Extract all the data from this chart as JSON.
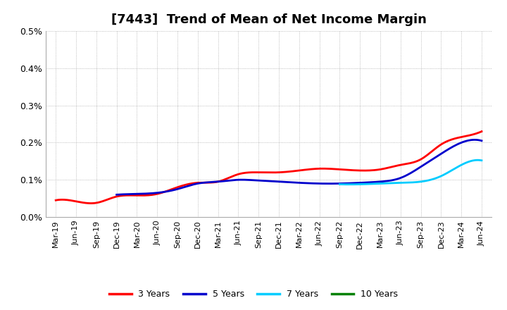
{
  "title": "[7443]  Trend of Mean of Net Income Margin",
  "background_color": "#ffffff",
  "grid_color": "#aaaaaa",
  "series": {
    "3 Years": {
      "color": "#ff0000",
      "x_indices": [
        0,
        1,
        2,
        3,
        4,
        5,
        6,
        7,
        8,
        9,
        10,
        11,
        12,
        13,
        14,
        15,
        16,
        17,
        18,
        19,
        20,
        21
      ],
      "y": [
        0.00045,
        0.00042,
        0.00038,
        0.00055,
        0.00058,
        0.00062,
        0.0008,
        0.00092,
        0.00095,
        0.00115,
        0.0012,
        0.0012,
        0.00125,
        0.0013,
        0.00128,
        0.00125,
        0.00128,
        0.0014,
        0.00155,
        0.00195,
        0.00215,
        0.0023
      ]
    },
    "5 Years": {
      "color": "#0000cc",
      "x_indices": [
        3,
        4,
        5,
        6,
        7,
        8,
        9,
        10,
        11,
        12,
        13,
        14,
        15,
        16,
        17,
        18,
        19,
        20,
        21
      ],
      "y": [
        0.0006,
        0.00062,
        0.00065,
        0.00075,
        0.0009,
        0.00095,
        0.001,
        0.00098,
        0.00095,
        0.00092,
        0.0009,
        0.0009,
        0.00092,
        0.00095,
        0.00105,
        0.00135,
        0.0017,
        0.002,
        0.00205
      ]
    },
    "7 Years": {
      "color": "#00ccff",
      "x_indices": [
        14,
        15,
        16,
        17,
        18,
        19,
        20,
        21
      ],
      "y": [
        0.00088,
        0.00088,
        0.0009,
        0.00092,
        0.00095,
        0.0011,
        0.0014,
        0.00152
      ]
    },
    "10 Years": {
      "color": "#008000",
      "x_indices": [],
      "y": []
    }
  },
  "x_labels": [
    "Mar-19",
    "Jun-19",
    "Sep-19",
    "Dec-19",
    "Mar-20",
    "Jun-20",
    "Sep-20",
    "Dec-20",
    "Mar-21",
    "Jun-21",
    "Sep-21",
    "Dec-21",
    "Mar-22",
    "Jun-22",
    "Sep-22",
    "Dec-22",
    "Mar-23",
    "Jun-23",
    "Sep-23",
    "Dec-23",
    "Mar-24",
    "Jun-24"
  ],
  "ylim": [
    0.0,
    0.005
  ],
  "yticks": [
    0.0,
    0.001,
    0.002,
    0.003,
    0.004,
    0.005
  ],
  "ytick_labels": [
    "0.0%",
    "0.1%",
    "0.2%",
    "0.3%",
    "0.4%",
    "0.5%"
  ],
  "title_fontsize": 13,
  "tick_fontsize": 8,
  "ytick_fontsize": 9
}
